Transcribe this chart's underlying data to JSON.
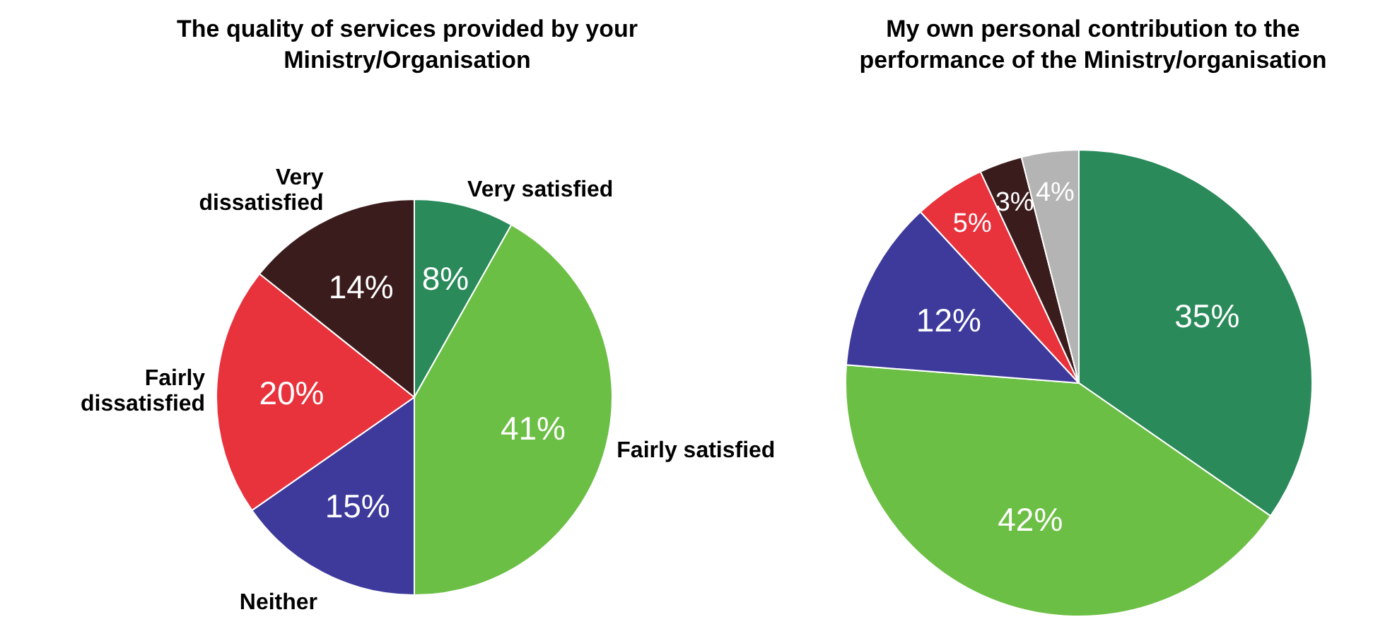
{
  "chart_data": [
    {
      "type": "pie",
      "title": "The quality of services provided by your Ministry/Organisation",
      "categories": [
        "Very satisfied",
        "Fairly satisfied",
        "Neither",
        "Fairly dissatisfied",
        "Very dissatisfied"
      ],
      "values": [
        8,
        41,
        15,
        20,
        14
      ],
      "value_labels": [
        "8%",
        "41%",
        "15%",
        "20%",
        "14%"
      ],
      "colors": [
        "#2a8a5a",
        "#6cbf45",
        "#3d3a9c",
        "#e8323c",
        "#3b1c1c"
      ],
      "legend": false
    },
    {
      "type": "pie",
      "title": "My own personal contribution to the performance of the Ministry/organisation",
      "categories": [
        null,
        null,
        null,
        null,
        null,
        null
      ],
      "values": [
        35,
        42,
        12,
        5,
        3,
        4
      ],
      "value_labels": [
        "35%",
        "42%",
        "12%",
        "5%",
        "3%",
        "4%"
      ],
      "colors": [
        "#2a8a5a",
        "#6cbf45",
        "#3d3a9c",
        "#e8323c",
        "#3b1c1c",
        "#b4b4b4"
      ],
      "legend": false
    }
  ]
}
